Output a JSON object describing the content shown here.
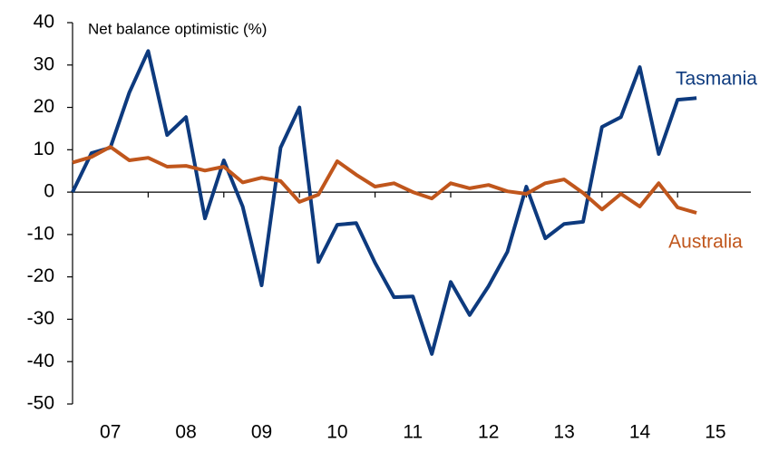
{
  "chart_data": {
    "type": "line",
    "title": "Net balance optimistic (%)",
    "categories": [
      null,
      null,
      "07",
      null,
      null,
      null,
      "08",
      null,
      null,
      null,
      "09",
      null,
      null,
      null,
      "10",
      null,
      null,
      null,
      "11",
      null,
      null,
      null,
      "12",
      null,
      null,
      null,
      "13",
      null,
      null,
      null,
      "14",
      null,
      null,
      null,
      "15"
    ],
    "series": [
      {
        "name": "Tasmania",
        "color": "#0d3a7e",
        "values": [
          0,
          9.2,
          10.5,
          23.5,
          33.3,
          13.5,
          17.7,
          -6.2,
          7.5,
          -3.4,
          -22,
          10.5,
          20,
          -16.5,
          -7.7,
          -7.3,
          -16.7,
          -24.8,
          -24.6,
          -38.2,
          -21.2,
          -29,
          -22.2,
          -14.1,
          1.3,
          -10.9,
          -7.5,
          -7,
          15.4,
          17.7,
          29.5,
          9,
          21.8,
          22.2,
          null
        ]
      },
      {
        "name": "Australia",
        "color": "#c0561c",
        "values": [
          7,
          8.3,
          10.7,
          7.5,
          8.1,
          6,
          6.2,
          5.1,
          6,
          2.3,
          3.4,
          2.6,
          -2.3,
          -0.6,
          7.3,
          4.1,
          1.3,
          2.1,
          0,
          -1.5,
          2.1,
          0.9,
          1.7,
          0.2,
          -0.4,
          2.1,
          3,
          -0.2,
          -4.1,
          -0.4,
          -3.4,
          2.1,
          -3.6,
          -4.9,
          null
        ]
      }
    ],
    "ylim": [
      -50,
      40
    ],
    "yticks": [
      -50,
      -40,
      -30,
      -20,
      -10,
      0,
      10,
      20,
      30,
      40
    ],
    "grid": false
  }
}
